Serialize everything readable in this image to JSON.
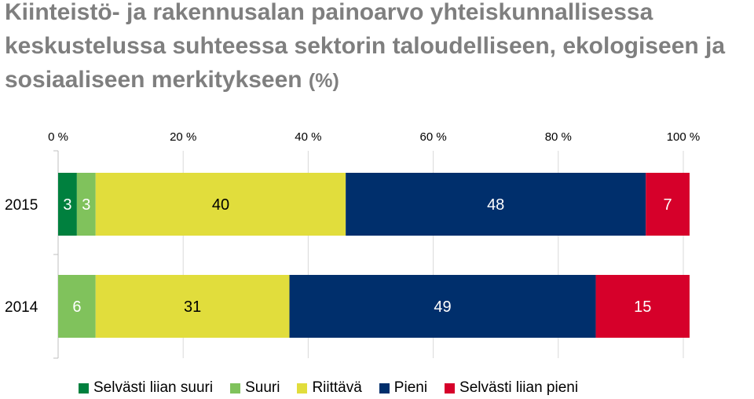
{
  "title": "Kiinteistö- ja rakennusalan painoarvo yhteiskunnallisessa keskustelussa suhteessa sektorin taloudelliseen, ekologiseen ja sosiaaliseen merkitykseen",
  "title_suffix": "(%)",
  "chart_data": {
    "type": "bar",
    "orientation": "horizontal-stacked-100",
    "categories": [
      "2015",
      "2014"
    ],
    "series": [
      {
        "name": "Selvästi liian suuri",
        "values": [
          3,
          0
        ],
        "color": "#00803e",
        "label_color": "#ffffff"
      },
      {
        "name": "Suuri",
        "values": [
          3,
          6
        ],
        "color": "#80c25c",
        "label_color": "#ffffff"
      },
      {
        "name": "Riittävä",
        "values": [
          40,
          31
        ],
        "color": "#e1dd3c",
        "label_color": "#000000"
      },
      {
        "name": "Pieni",
        "values": [
          48,
          49
        ],
        "color": "#002f6c",
        "label_color": "#ffffff"
      },
      {
        "name": "Selvästi liian pieni",
        "values": [
          7,
          15
        ],
        "color": "#d6002a",
        "label_color": "#ffffff"
      }
    ],
    "x_ticks": [
      "0 %",
      "20 %",
      "40 %",
      "60 %",
      "80 %",
      "100 %"
    ],
    "xlim": [
      0,
      100
    ],
    "axis_position": "top",
    "grid": true,
    "legend_position": "bottom"
  }
}
